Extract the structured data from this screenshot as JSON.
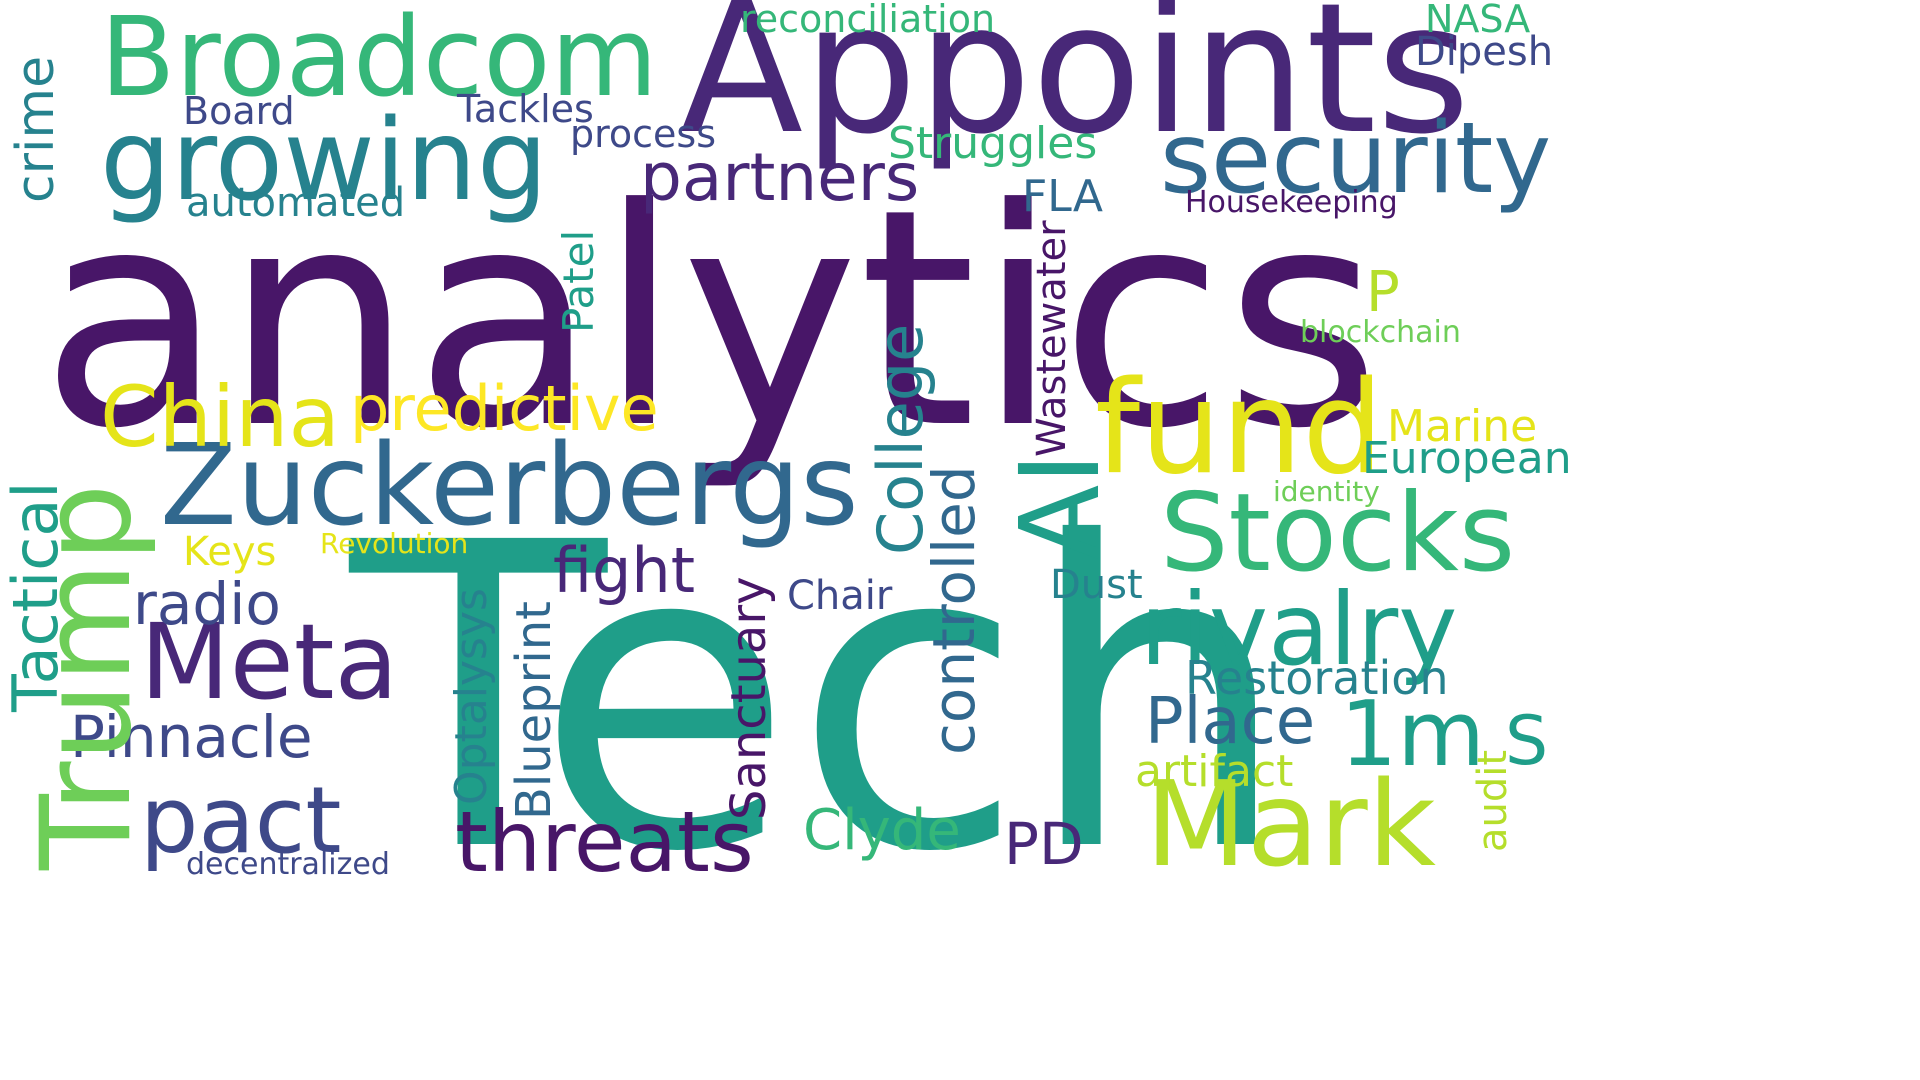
{
  "words": {
    "analytics": "analytics",
    "tech": "Tech",
    "appoints": "Appoints",
    "broadcom": "Broadcom",
    "growing": "growing",
    "security": "security",
    "partners": "partners",
    "zuckerbergs": "Zuckerbergs",
    "china": "China",
    "predictive": "predictive",
    "fund": "fund",
    "stocks": "Stocks",
    "rivalry": "rivalry",
    "meta": "Meta",
    "trump": "Trump",
    "mark": "Mark",
    "threats": "threats",
    "pact": "pact",
    "ai": "AI",
    "fight": "fight",
    "radio": "radio",
    "pinnacle": "Pinnacle",
    "place": "Place",
    "onem": "1m",
    "s": "S",
    "tactical": "Tactical",
    "crime": "crime",
    "college": "College",
    "controlled": "controlled",
    "restoration": "Restoration",
    "clyde": "Clyde",
    "pd": "PD",
    "sanctuary": "Sanctuary",
    "blueprint": "Blueprint",
    "optalysys": "Optalysys",
    "wastewater": "Wastewater",
    "patel": "Patel",
    "reconciliation": "reconciliation",
    "nasa": "NASA",
    "dipesh": "Dipesh",
    "board": "Board",
    "tackles": "Tackles",
    "process": "process",
    "struggles": "Struggles",
    "automated": "automated",
    "fla": "FLA",
    "housekeeping": "Housekeeping",
    "p": "P",
    "blockchain": "blockchain",
    "marine": "Marine",
    "european": "European",
    "identity": "identity",
    "keys": "Keys",
    "revolution": "Revolution",
    "chair": "Chair",
    "dust": "Dust",
    "artifact": "artifact",
    "audit": "audit",
    "decentralized": "decentralized"
  },
  "colors": {
    "dark_purple": "#481668",
    "purple": "#482878",
    "indigo": "#3e4989",
    "blue": "#31688e",
    "steel": "#26828e",
    "teal": "#1f9e89",
    "green": "#35b779",
    "light_green": "#6ece58",
    "lime": "#b5de2b",
    "yellow": "#e5e419",
    "bright_yellow": "#fde725"
  }
}
